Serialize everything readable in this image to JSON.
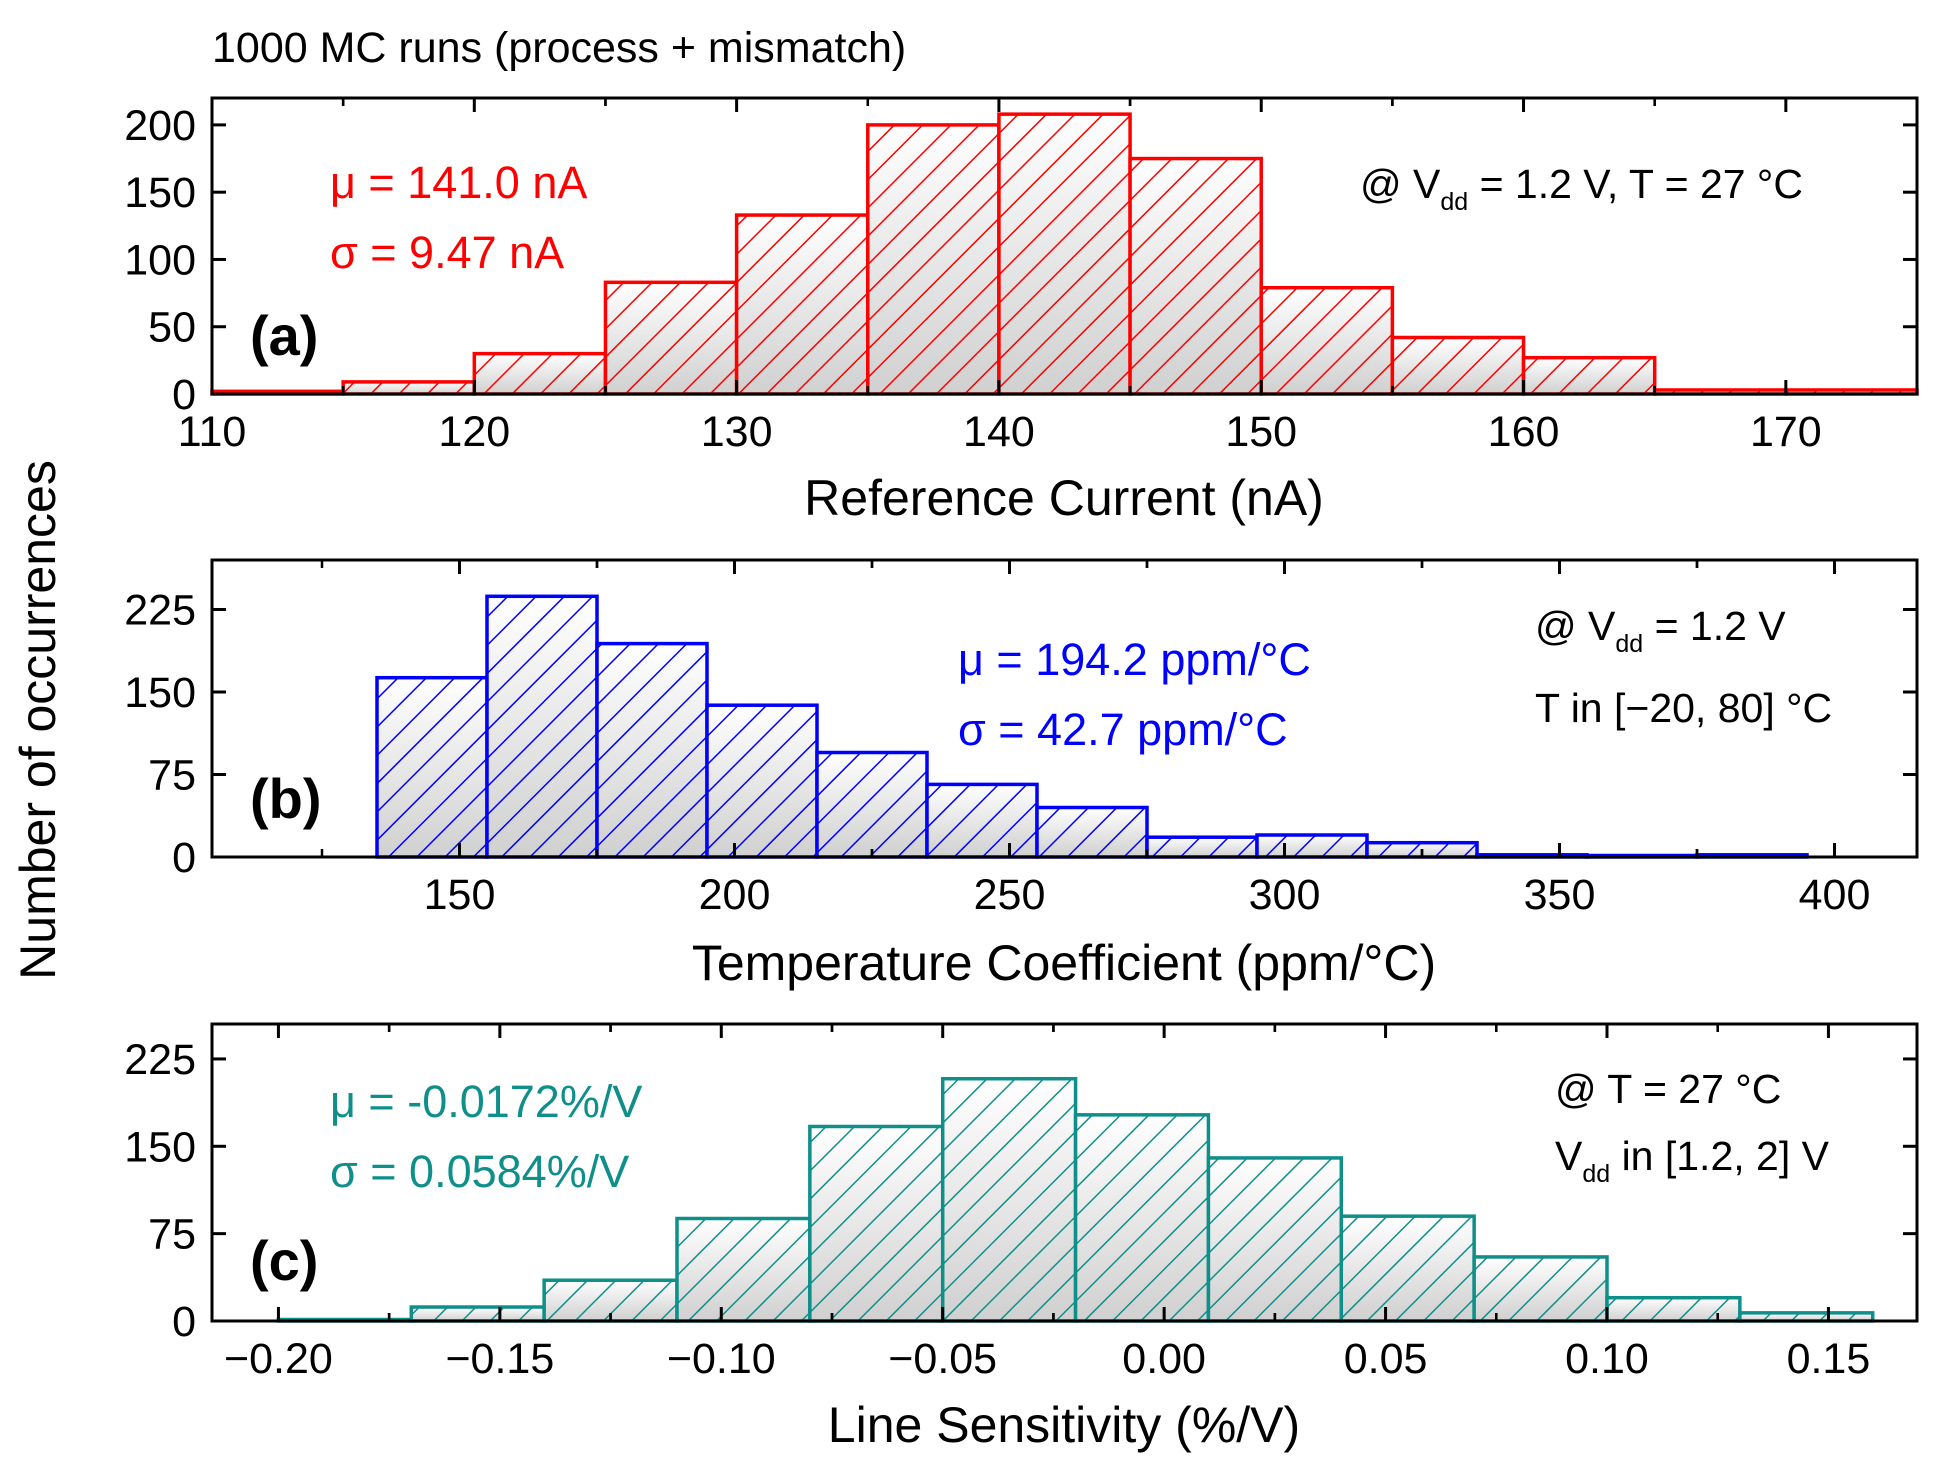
{
  "figure": {
    "header": "1000 MC runs (process + mismatch)",
    "ylabel": "Number of occurrences"
  },
  "chart_data": [
    {
      "type": "bar",
      "panel_label": "(a)",
      "xlabel": "Reference Current (nA)",
      "xlim": [
        110,
        175
      ],
      "ylim": [
        0,
        220
      ],
      "xticks": [
        110,
        120,
        130,
        140,
        150,
        160,
        170
      ],
      "xtick_labels": [
        "110",
        "120",
        "130",
        "140",
        "150",
        "160",
        "170"
      ],
      "yticks": [
        0,
        50,
        100,
        150,
        200
      ],
      "ytick_labels": [
        "0",
        "50",
        "100",
        "150",
        "200"
      ],
      "bin_edges": [
        110,
        115,
        120,
        125,
        130,
        135,
        140,
        145,
        150,
        155,
        160,
        165,
        170,
        175
      ],
      "values": [
        2,
        9,
        30,
        83,
        133,
        200,
        208,
        175,
        79,
        42,
        27,
        3,
        3
      ],
      "color": "#ff0000",
      "stats": {
        "mu": "μ = 141.0 nA",
        "sigma": "σ = 9.47 nA"
      },
      "conditions": {
        "line1_pre": "@ V",
        "line1_sub": "dd",
        "line1_post": " = 1.2 V, T = 27 °C"
      }
    },
    {
      "type": "bar",
      "panel_label": "(b)",
      "xlabel": "Temperature Coefficient (ppm/°C)",
      "xlim": [
        105,
        415
      ],
      "ylim": [
        0,
        270
      ],
      "xticks": [
        150,
        200,
        250,
        300,
        350,
        400
      ],
      "xtick_labels": [
        "150",
        "200",
        "250",
        "300",
        "350",
        "400"
      ],
      "yticks": [
        0,
        75,
        150,
        225
      ],
      "ytick_labels": [
        "0",
        "75",
        "150",
        "225"
      ],
      "bin_edges": [
        135,
        155,
        175,
        195,
        215,
        235,
        255,
        275,
        295,
        315,
        335,
        355,
        375,
        395
      ],
      "values": [
        163,
        237,
        194,
        138,
        95,
        66,
        45,
        18,
        20,
        13,
        2,
        0,
        2
      ],
      "color": "#0000ff",
      "stats": {
        "mu": "μ = 194.2 ppm/°C",
        "sigma": "σ = 42.7 ppm/°C"
      },
      "conditions": {
        "line1_pre": "@ V",
        "line1_sub": "dd",
        "line1_post": " = 1.2 V",
        "line2": "T in [−20, 80] °C"
      }
    },
    {
      "type": "bar",
      "panel_label": "(c)",
      "xlabel": "Line Sensitivity (%/V)",
      "xlim": [
        -0.215,
        0.17
      ],
      "ylim": [
        0,
        255
      ],
      "xticks": [
        -0.2,
        -0.15,
        -0.1,
        -0.05,
        0.0,
        0.05,
        0.1,
        0.15
      ],
      "xtick_labels": [
        "−0.20",
        "−0.15",
        "−0.10",
        "−0.05",
        "0.00",
        "0.05",
        "0.10",
        "0.15"
      ],
      "yticks": [
        0,
        75,
        150,
        225
      ],
      "ytick_labels": [
        "0",
        "75",
        "150",
        "225"
      ],
      "bin_edges": [
        -0.2,
        -0.17,
        -0.14,
        -0.11,
        -0.08,
        -0.05,
        -0.02,
        0.01,
        0.04,
        0.07,
        0.1,
        0.13,
        0.16
      ],
      "values": [
        1,
        12,
        35,
        88,
        167,
        208,
        177,
        140,
        90,
        55,
        20,
        7
      ],
      "color": "#0f8f8a",
      "stats": {
        "mu": "μ = -0.0172%/V",
        "sigma": "σ = 0.0584%/V"
      },
      "conditions": {
        "line1": "@ T = 27 °C",
        "line2_pre": "V",
        "line2_sub": "dd",
        "line2_post": " in [1.2, 2] V"
      }
    }
  ]
}
